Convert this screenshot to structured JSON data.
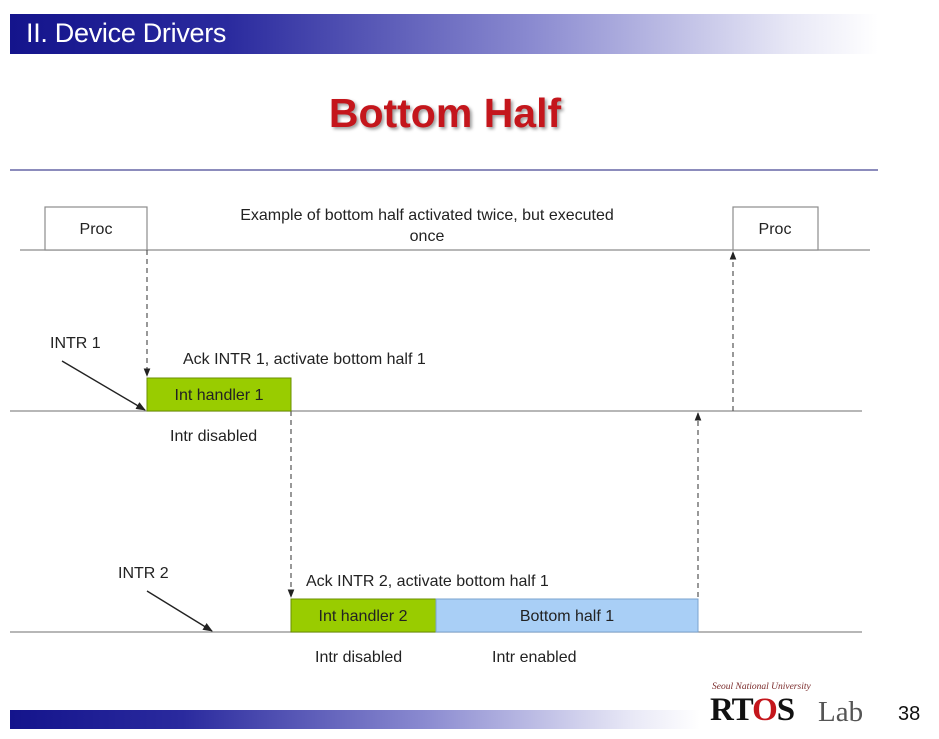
{
  "header": {
    "section_title": "II. Device Drivers",
    "colors": {
      "bar_dark": "#14148c",
      "bar_light": "#ffffff"
    }
  },
  "slide": {
    "title": "Bottom Half",
    "title_color": "#c4161c"
  },
  "diagram": {
    "caption_line1": "Example of bottom half activated twice, but executed",
    "caption_line2": "once",
    "proc_left": "Proc",
    "proc_right": "Proc",
    "intr1_label": "INTR  1",
    "ack1_label": "Ack INTR  1, activate bottom half 1",
    "int_handler1": "Int  handler  1",
    "intr_disabled_1": "Intr  disabled",
    "intr2_label": "INTR  2",
    "ack2_label": "Ack INTR  2, activate bottom half 1",
    "int_handler2": "Int  handler  2",
    "bottom_half1": "Bottom half  1",
    "intr_disabled_2": "Intr  disabled",
    "intr_enabled": "Intr  enabled",
    "colors": {
      "handler_green": "#99cc00",
      "bottom_half_blue": "#a9cff6"
    }
  },
  "footer": {
    "logo_university": "Seoul National University",
    "logo_main_prefix": "RT",
    "logo_main_o": "O",
    "logo_main_suffix": "S",
    "logo_lab": "Lab",
    "page_number": "38"
  }
}
